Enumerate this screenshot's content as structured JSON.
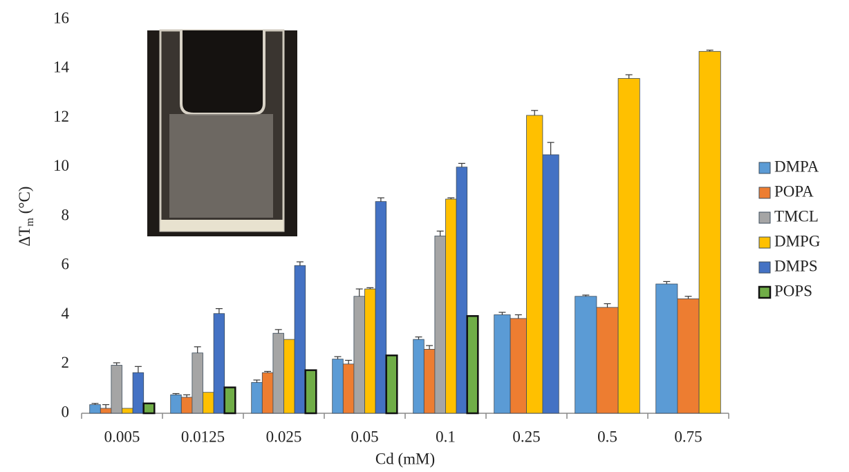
{
  "chart_data": {
    "type": "bar",
    "x_label": "Cd (mM)",
    "y_label_parts": [
      "ΔT",
      "m",
      " (°C)"
    ],
    "categories": [
      "0.005",
      "0.0125",
      "0.025",
      "0.05",
      "0.1",
      "0.25",
      "0.5",
      "0.75"
    ],
    "ylim": [
      0,
      16
    ],
    "yticks": [
      0,
      2,
      4,
      6,
      8,
      10,
      12,
      14,
      16
    ],
    "grid": false,
    "legend": "right",
    "series": [
      {
        "name": "DMPA",
        "color": "#5b9bd5",
        "values": [
          0.35,
          0.75,
          1.25,
          2.2,
          3.0,
          4.0,
          4.75,
          5.25
        ],
        "errors": [
          0.05,
          0.05,
          0.1,
          0.1,
          0.1,
          0.1,
          0.05,
          0.1
        ]
      },
      {
        "name": "POPA",
        "color": "#ed7d31",
        "values": [
          0.2,
          0.65,
          1.65,
          2.0,
          2.6,
          3.85,
          4.3,
          4.65
        ],
        "errors": [
          0.15,
          0.1,
          0.05,
          0.15,
          0.15,
          0.15,
          0.15,
          0.1
        ]
      },
      {
        "name": "TMCL",
        "color": "#a5a5a5",
        "values": [
          1.95,
          2.45,
          3.25,
          4.75,
          7.2,
          null,
          null,
          null
        ],
        "errors": [
          0.1,
          0.25,
          0.15,
          0.3,
          0.2,
          null,
          null,
          null
        ]
      },
      {
        "name": "DMPG",
        "color": "#ffc000",
        "values": [
          0.2,
          0.85,
          3.0,
          5.05,
          8.7,
          12.1,
          13.6,
          14.7
        ],
        "errors": [
          0,
          0,
          0,
          0.05,
          0.05,
          0.2,
          0.15,
          0.05
        ]
      },
      {
        "name": "DMPS",
        "color": "#4472c4",
        "values": [
          1.65,
          4.05,
          6.0,
          8.6,
          10.0,
          10.5,
          null,
          null
        ],
        "errors": [
          0.25,
          0.2,
          0.15,
          0.15,
          0.15,
          0.5,
          null,
          null
        ]
      },
      {
        "name": "POPS",
        "color": "#70ad47",
        "values": [
          0.4,
          1.05,
          1.75,
          2.35,
          3.95,
          null,
          null,
          null
        ],
        "errors": [
          0,
          0,
          0,
          0,
          0,
          null,
          null,
          null
        ]
      }
    ]
  }
}
